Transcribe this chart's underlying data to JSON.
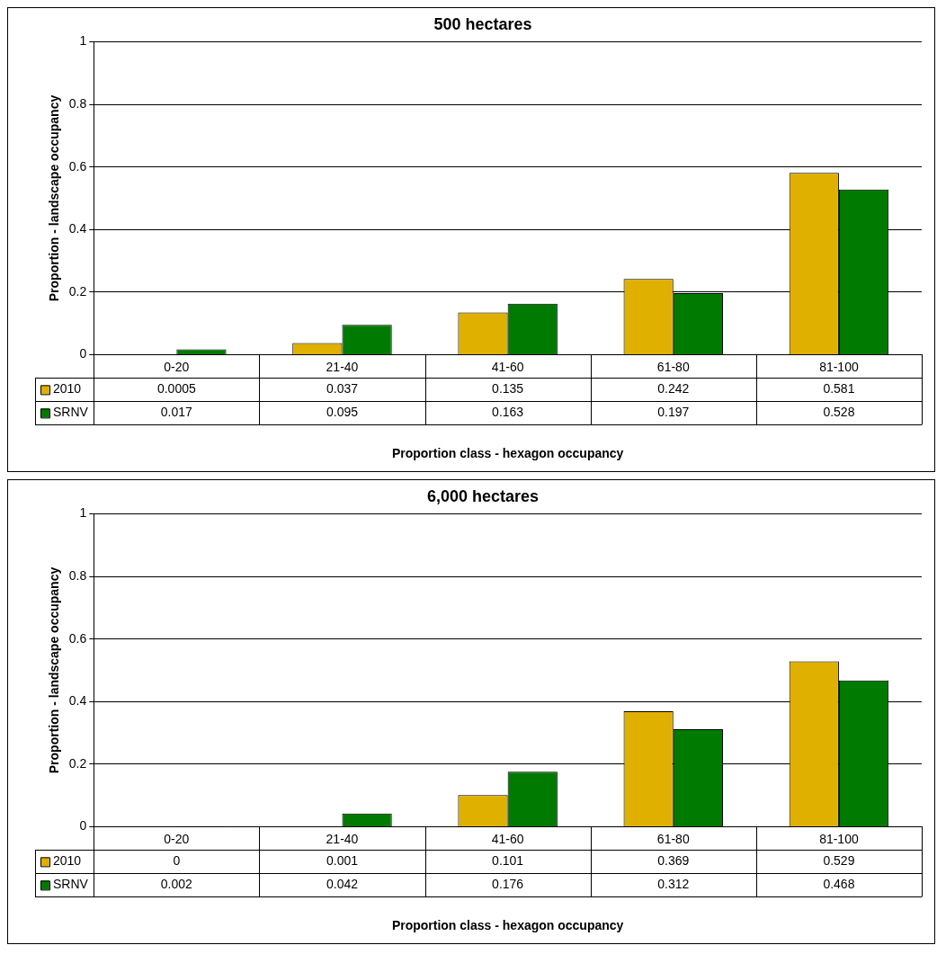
{
  "chart_data": [
    {
      "type": "bar",
      "title": "500 hectares",
      "xlabel": "Proportion class - hexagon occupancy",
      "ylabel": "Proportion - landscape occupancy",
      "categories": [
        "0-20",
        "21-40",
        "41-60",
        "61-80",
        "81-100"
      ],
      "series": [
        {
          "name": "2010",
          "color": "#e0b000",
          "values": [
            0.0005,
            0.037,
            0.135,
            0.242,
            0.581
          ]
        },
        {
          "name": "SRNV",
          "color": "#007a00",
          "values": [
            0.017,
            0.095,
            0.163,
            0.197,
            0.528
          ]
        }
      ],
      "ylim": [
        0,
        1
      ],
      "yticks": [
        0,
        0.2,
        0.4,
        0.6,
        0.8,
        1
      ],
      "grid": "y",
      "legend": "bottom",
      "data_labels": true
    },
    {
      "type": "bar",
      "title": "6,000 hectares",
      "xlabel": "Proportion class - hexagon occupancy",
      "ylabel": "Proportion - landscape occupancy",
      "categories": [
        "0-20",
        "21-40",
        "41-60",
        "61-80",
        "81-100"
      ],
      "series": [
        {
          "name": "2010",
          "color": "#e0b000",
          "values": [
            0,
            0.001,
            0.101,
            0.369,
            0.529
          ]
        },
        {
          "name": "SRNV",
          "color": "#007a00",
          "values": [
            0.002,
            0.042,
            0.176,
            0.312,
            0.468
          ]
        }
      ],
      "ylim": [
        0,
        1
      ],
      "yticks": [
        0,
        0.2,
        0.4,
        0.6,
        0.8,
        1
      ],
      "grid": "y",
      "legend": "bottom",
      "data_labels": true
    }
  ]
}
